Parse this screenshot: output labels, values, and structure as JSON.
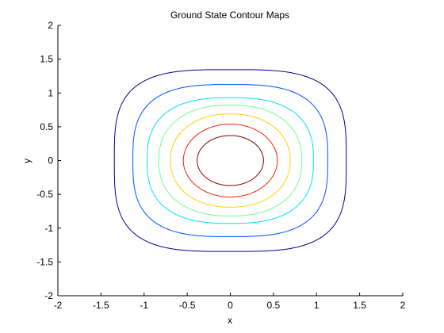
{
  "chart_data": {
    "type": "contour",
    "title": "Ground State Contour Maps",
    "xlabel": "x",
    "ylabel": "y",
    "xlim": [
      -2,
      2
    ],
    "ylim": [
      -2,
      2
    ],
    "xticks": [
      "-2",
      "-1.5",
      "-1",
      "-0.5",
      "0",
      "0.5",
      "1",
      "1.5",
      "2"
    ],
    "yticks": [
      "2",
      "1.5",
      "1",
      "0.5",
      "0",
      "-0.5",
      "-1",
      "-1.5",
      "-2"
    ],
    "grid": false,
    "series": [
      {
        "level": 1,
        "rx": 1.345,
        "ry": 1.345,
        "p": 3.4,
        "color": "#00008f"
      },
      {
        "level": 2,
        "rx": 1.13,
        "ry": 1.125,
        "p": 3.0,
        "color": "#0050ff"
      },
      {
        "level": 3,
        "rx": 0.965,
        "ry": 0.93,
        "p": 2.6,
        "color": "#00dfff"
      },
      {
        "level": 4,
        "rx": 0.83,
        "ry": 0.82,
        "p": 2.3,
        "color": "#70ff8f"
      },
      {
        "level": 5,
        "rx": 0.695,
        "ry": 0.69,
        "p": 2.15,
        "color": "#ffcf00"
      },
      {
        "level": 6,
        "rx": 0.545,
        "ry": 0.54,
        "p": 2.0,
        "color": "#ff2000"
      },
      {
        "level": 7,
        "rx": 0.385,
        "ry": 0.37,
        "p": 2.0,
        "color": "#800000"
      }
    ]
  }
}
